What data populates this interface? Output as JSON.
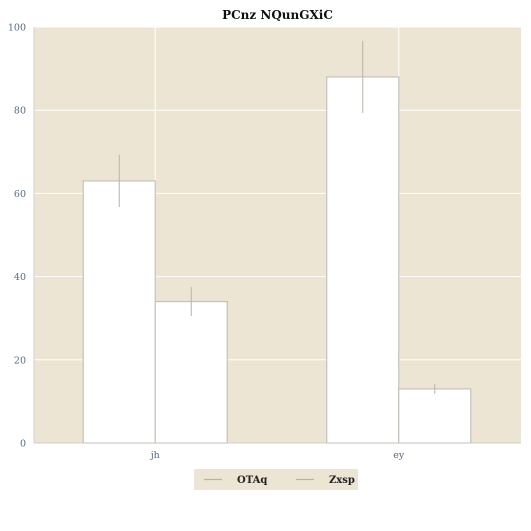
{
  "chart_data": {
    "type": "bar",
    "title": "PCnz NQunGXiC",
    "xlabel": "",
    "ylabel": "",
    "categories": [
      "jh",
      "ey"
    ],
    "series": [
      {
        "name": "OTAq",
        "values": [
          63,
          88
        ],
        "errors": [
          6.3,
          8.7
        ]
      },
      {
        "name": "Zxsp",
        "values": [
          34,
          13
        ],
        "errors": [
          3.5,
          1.2
        ]
      }
    ],
    "ylim": [
      0,
      100
    ],
    "yticks": [
      0,
      20,
      40,
      60,
      80,
      100
    ],
    "grid": true,
    "legend_position": "bottom-center"
  },
  "colors": {
    "plot_background": "#ede5d4",
    "bar_fill": "#ffffff",
    "bar_edge": "#c2c2bb",
    "grid": "#ffffff",
    "error_bar": "#b4b4aa",
    "legend_background": "#ede5d4"
  }
}
